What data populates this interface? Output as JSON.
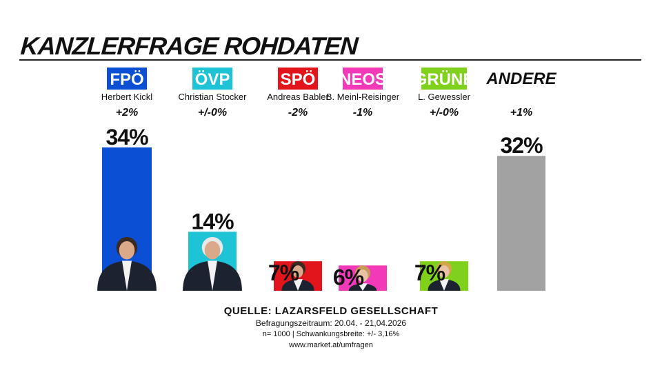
{
  "header": {
    "title": "KANZLERFRAGE ROHDATEN"
  },
  "chart_data": {
    "type": "bar",
    "title": "KANZLERFRAGE ROHDATEN",
    "categories": [
      "FPÖ",
      "ÖVP",
      "SPÖ",
      "NEOS",
      "GRÜNE",
      "ANDERE"
    ],
    "candidates": [
      "Herbert Kickl",
      "Christian Stocker",
      "Andreas Babler",
      "B. Meinl-Reisinger",
      "L. Gewessler",
      ""
    ],
    "changes": [
      "+2%",
      "+/-0%",
      "-2%",
      "-1%",
      "+/-0%",
      "+1%"
    ],
    "values": [
      34,
      14,
      7,
      6,
      7,
      32
    ],
    "value_labels": [
      "34%",
      "14%",
      "7%",
      "6%",
      "7%",
      "32%"
    ],
    "colors": [
      "#0a4fd4",
      "#1fc3d6",
      "#e3151c",
      "#f23ab9",
      "#7fd11b",
      "#a2a2a2"
    ],
    "badge_text_colors": [
      "#ffffff",
      "#ffffff",
      "#ffffff",
      "#ffffff",
      "#ffffff",
      "#111111"
    ],
    "ylim": [
      0,
      40
    ],
    "xlabel": "",
    "ylabel": "",
    "grid": false
  },
  "footer": {
    "source": "QUELLE: LAZARSFELD GESELLSCHAFT",
    "period": "Befragungszeitraum: 20.04. - 21,04.2026",
    "sample": "n= 1000 | Schwankungsbreite: +/- 3,16%",
    "url": "www.market.at/umfragen"
  }
}
